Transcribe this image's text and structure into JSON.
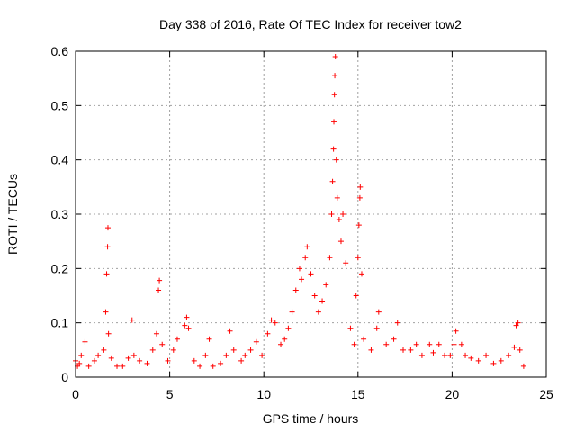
{
  "chart_data": {
    "type": "scatter",
    "title": "Day 338 of 2016, Rate Of TEC Index for receiver tow2",
    "xlabel": "GPS time / hours",
    "ylabel": "ROTI / TECUs",
    "xlim": [
      0,
      25
    ],
    "ylim": [
      0,
      0.6
    ],
    "xticks": [
      0,
      5,
      10,
      15,
      20,
      25
    ],
    "xtick_labels": [
      "0",
      "5",
      "10",
      "15",
      "20",
      "25"
    ],
    "yticks": [
      0,
      0.1,
      0.2,
      0.3,
      0.4,
      0.5,
      0.6
    ],
    "ytick_labels": [
      "0",
      "0.1",
      "0.2",
      "0.3",
      "0.4",
      "0.5",
      "0.6"
    ],
    "grid": true,
    "marker": "+",
    "color": "#ff0000",
    "series": [
      {
        "name": "ROTI",
        "points": [
          [
            0.0,
            0.03
          ],
          [
            0.1,
            0.02
          ],
          [
            0.2,
            0.025
          ],
          [
            0.3,
            0.04
          ],
          [
            0.5,
            0.065
          ],
          [
            0.7,
            0.02
          ],
          [
            1.0,
            0.03
          ],
          [
            1.2,
            0.04
          ],
          [
            1.5,
            0.05
          ],
          [
            1.6,
            0.12
          ],
          [
            1.65,
            0.19
          ],
          [
            1.7,
            0.24
          ],
          [
            1.72,
            0.275
          ],
          [
            1.75,
            0.08
          ],
          [
            1.9,
            0.035
          ],
          [
            2.2,
            0.02
          ],
          [
            2.5,
            0.02
          ],
          [
            2.8,
            0.035
          ],
          [
            3.0,
            0.105
          ],
          [
            3.1,
            0.04
          ],
          [
            3.4,
            0.03
          ],
          [
            3.8,
            0.025
          ],
          [
            4.1,
            0.05
          ],
          [
            4.3,
            0.08
          ],
          [
            4.4,
            0.16
          ],
          [
            4.45,
            0.178
          ],
          [
            4.6,
            0.06
          ],
          [
            4.9,
            0.03
          ],
          [
            5.2,
            0.05
          ],
          [
            5.4,
            0.07
          ],
          [
            5.8,
            0.095
          ],
          [
            5.9,
            0.11
          ],
          [
            6.0,
            0.09
          ],
          [
            6.3,
            0.03
          ],
          [
            6.6,
            0.02
          ],
          [
            6.9,
            0.04
          ],
          [
            7.1,
            0.07
          ],
          [
            7.3,
            0.02
          ],
          [
            7.7,
            0.025
          ],
          [
            8.0,
            0.04
          ],
          [
            8.2,
            0.085
          ],
          [
            8.4,
            0.05
          ],
          [
            8.8,
            0.03
          ],
          [
            9.0,
            0.04
          ],
          [
            9.3,
            0.05
          ],
          [
            9.6,
            0.065
          ],
          [
            9.9,
            0.04
          ],
          [
            10.2,
            0.08
          ],
          [
            10.4,
            0.105
          ],
          [
            10.6,
            0.1
          ],
          [
            10.9,
            0.06
          ],
          [
            11.1,
            0.07
          ],
          [
            11.3,
            0.09
          ],
          [
            11.5,
            0.12
          ],
          [
            11.7,
            0.16
          ],
          [
            11.9,
            0.2
          ],
          [
            12.0,
            0.18
          ],
          [
            12.2,
            0.22
          ],
          [
            12.3,
            0.24
          ],
          [
            12.5,
            0.19
          ],
          [
            12.7,
            0.15
          ],
          [
            12.9,
            0.12
          ],
          [
            13.1,
            0.14
          ],
          [
            13.3,
            0.17
          ],
          [
            13.5,
            0.22
          ],
          [
            13.6,
            0.3
          ],
          [
            13.65,
            0.36
          ],
          [
            13.7,
            0.42
          ],
          [
            13.72,
            0.47
          ],
          [
            13.75,
            0.52
          ],
          [
            13.77,
            0.555
          ],
          [
            13.8,
            0.59
          ],
          [
            13.85,
            0.4
          ],
          [
            13.9,
            0.33
          ],
          [
            14.0,
            0.29
          ],
          [
            14.1,
            0.25
          ],
          [
            14.2,
            0.3
          ],
          [
            14.35,
            0.21
          ],
          [
            14.6,
            0.09
          ],
          [
            14.8,
            0.06
          ],
          [
            14.9,
            0.15
          ],
          [
            15.0,
            0.22
          ],
          [
            15.05,
            0.28
          ],
          [
            15.1,
            0.33
          ],
          [
            15.12,
            0.35
          ],
          [
            15.2,
            0.19
          ],
          [
            15.3,
            0.07
          ],
          [
            15.7,
            0.05
          ],
          [
            16.0,
            0.09
          ],
          [
            16.1,
            0.12
          ],
          [
            16.5,
            0.06
          ],
          [
            16.9,
            0.07
          ],
          [
            17.1,
            0.1
          ],
          [
            17.4,
            0.05
          ],
          [
            17.8,
            0.05
          ],
          [
            18.1,
            0.06
          ],
          [
            18.4,
            0.04
          ],
          [
            18.8,
            0.06
          ],
          [
            19.0,
            0.045
          ],
          [
            19.3,
            0.06
          ],
          [
            19.6,
            0.04
          ],
          [
            19.9,
            0.04
          ],
          [
            20.1,
            0.06
          ],
          [
            20.2,
            0.085
          ],
          [
            20.5,
            0.06
          ],
          [
            20.7,
            0.04
          ],
          [
            21.0,
            0.035
          ],
          [
            21.4,
            0.03
          ],
          [
            21.8,
            0.04
          ],
          [
            22.2,
            0.025
          ],
          [
            22.6,
            0.03
          ],
          [
            23.0,
            0.04
          ],
          [
            23.3,
            0.055
          ],
          [
            23.4,
            0.095
          ],
          [
            23.5,
            0.1
          ],
          [
            23.6,
            0.05
          ],
          [
            23.8,
            0.02
          ]
        ]
      }
    ]
  }
}
